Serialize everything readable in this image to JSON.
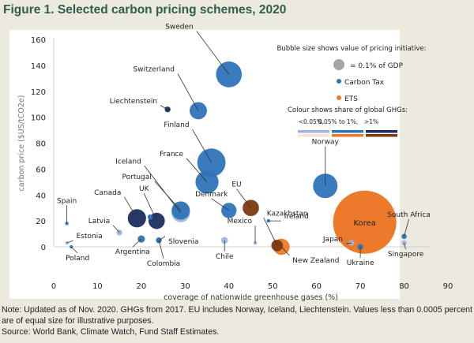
{
  "title": "Figure 1. Selected carbon pricing schemes, 2020",
  "notes": {
    "line1": "Note: Updated as of Nov. 2020. GHGs from 2017. EU includes Norway, Iceland, Liechtenstein. Values less than 0.0005 percent of GDP",
    "line2": "are of equal size for illustrative purposes.",
    "source": "Source: World Bank, Climate Watch, Fund Staff Estimates."
  },
  "colors": {
    "tax_low": "#9fb4e0",
    "tax_mid": "#2e74b8",
    "tax_high": "#1c2d5e",
    "ets_low": "#fbe4d4",
    "ets_mid": "#ec7a2a",
    "ets_high": "#7b3a10",
    "reference_gray": "#a6a6a6",
    "title_green": "#2f5e4a"
  },
  "chart_data": {
    "type": "scatter",
    "subtype": "bubble",
    "title": "Figure 1. Selected carbon pricing schemes, 2020",
    "xlabel": "coverage of nationwide greenhouse gases (%)",
    "ylabel": "carbon price ($US/tCO2e)",
    "xlim": [
      0,
      90
    ],
    "ylim": [
      0,
      160
    ],
    "xticks": [
      0,
      10,
      20,
      30,
      40,
      50,
      60,
      70,
      80,
      90
    ],
    "yticks": [
      0,
      20,
      40,
      60,
      80,
      100,
      120,
      140,
      160
    ],
    "grid": false,
    "legend": {
      "placement": "top-right",
      "size_title": "Bubble size shows value of pricing initiative:",
      "size_reference_label": "= 0.1% of GDP",
      "size_reference_gdp_pct": 0.1,
      "types": [
        {
          "name": "Carbon Tax",
          "color": "#2e74b8"
        },
        {
          "name": "ETS",
          "color": "#ec7a2a"
        }
      ],
      "colour_title": "Colour shows share of global GHGs:",
      "share_labels": [
        "<0.05%,",
        "0.05% to 1%,",
        ">1%"
      ]
    },
    "points": [
      {
        "label": "Sweden",
        "x": 40,
        "y": 133,
        "gdp_pct": 0.1,
        "type": "tax",
        "share": "mid"
      },
      {
        "label": "Switzerland",
        "x": 33,
        "y": 105,
        "gdp_pct": 0.045,
        "type": "tax",
        "share": "mid"
      },
      {
        "label": "Liechtenstein",
        "x": 26,
        "y": 106,
        "gdp_pct": 0.005,
        "type": "tax",
        "share": "high"
      },
      {
        "label": "Finland",
        "x": 36,
        "y": 65,
        "gdp_pct": 0.12,
        "type": "tax",
        "share": "mid"
      },
      {
        "label": "France",
        "x": 35,
        "y": 50,
        "gdp_pct": 0.08,
        "type": "tax",
        "share": "mid"
      },
      {
        "label": "Iceland",
        "x": 29,
        "y": 26,
        "gdp_pct": 0.05,
        "type": "tax",
        "share": "low"
      },
      {
        "label": "Portugal",
        "x": 29,
        "y": 28,
        "gdp_pct": 0.05,
        "type": "tax",
        "share": "mid"
      },
      {
        "label": "Denmark",
        "x": 40,
        "y": 28,
        "gdp_pct": 0.035,
        "type": "tax",
        "share": "mid"
      },
      {
        "label": "EU",
        "x": 45,
        "y": 30,
        "gdp_pct": 0.04,
        "type": "ets",
        "share": "high"
      },
      {
        "label": "Norway",
        "x": 62,
        "y": 47,
        "gdp_pct": 0.09,
        "type": "tax",
        "share": "mid"
      },
      {
        "label": "Ireland",
        "x": 49,
        "y": 20,
        "gdp_pct": 0.0003,
        "type": "tax",
        "share": "mid"
      },
      {
        "label": "Canada",
        "x": 19,
        "y": 22,
        "gdp_pct": 0.05,
        "type": "tax",
        "share": "high"
      },
      {
        "label": "UK",
        "x": 23.5,
        "y": 20,
        "gdp_pct": 0.04,
        "type": "tax",
        "share": "high"
      },
      {
        "label": "UK",
        "x": 22,
        "y": 23,
        "gdp_pct": 0.004,
        "type": "tax",
        "share": "mid"
      },
      {
        "label": "Latvia",
        "x": 15,
        "y": 11,
        "gdp_pct": 0.005,
        "type": "tax",
        "share": "low"
      },
      {
        "label": "Spain",
        "x": 3,
        "y": 18,
        "gdp_pct": 0.0003,
        "type": "tax",
        "share": "mid"
      },
      {
        "label": "Estonia",
        "x": 3,
        "y": 3,
        "gdp_pct": 0.0003,
        "type": "tax",
        "share": "low"
      },
      {
        "label": "Poland",
        "x": 4,
        "y": 0,
        "gdp_pct": 0.0003,
        "type": "tax",
        "share": "mid"
      },
      {
        "label": "Argentina",
        "x": 20,
        "y": 6,
        "gdp_pct": 0.008,
        "type": "tax",
        "share": "mid"
      },
      {
        "label": "Slovenia",
        "x": 24,
        "y": 5,
        "gdp_pct": 0.005,
        "type": "tax",
        "share": "mid"
      },
      {
        "label": "Colombia",
        "x": 24,
        "y": 5,
        "gdp_pct": 0.005,
        "type": "tax",
        "share": "mid"
      },
      {
        "label": "Mexico",
        "x": 46,
        "y": 3,
        "gdp_pct": 0.002,
        "type": "tax",
        "share": "low"
      },
      {
        "label": "Chile",
        "x": 39,
        "y": 5,
        "gdp_pct": 0.007,
        "type": "tax",
        "share": "low"
      },
      {
        "label": "Kazakhstan",
        "x": 51,
        "y": 1,
        "gdp_pct": 0.02,
        "type": "ets",
        "share": "high"
      },
      {
        "label": "New Zealand",
        "x": 52,
        "y": 0,
        "gdp_pct": 0.04,
        "type": "ets",
        "share": "mid"
      },
      {
        "label": "Korea",
        "x": 71,
        "y": 19,
        "gdp_pct": 0.6,
        "type": "ets",
        "share": "mid"
      },
      {
        "label": "Japan",
        "x": 68,
        "y": 3,
        "gdp_pct": 0.005,
        "type": "tax",
        "share": "low"
      },
      {
        "label": "Ukraine",
        "x": 70,
        "y": 0,
        "gdp_pct": 0.005,
        "type": "tax",
        "share": "mid"
      },
      {
        "label": "South Africa",
        "x": 80,
        "y": 8,
        "gdp_pct": 0.004,
        "type": "tax",
        "share": "mid"
      },
      {
        "label": "Singapore",
        "x": 80,
        "y": 3,
        "gdp_pct": 0.004,
        "type": "tax",
        "share": "low"
      }
    ],
    "labels": [
      {
        "text": "Sweden",
        "for": "Sweden"
      },
      {
        "text": "Switzerland",
        "for": "Switzerland"
      },
      {
        "text": "Liechtenstein",
        "for": "Liechtenstein"
      },
      {
        "text": "Finland",
        "for": "Finland"
      },
      {
        "text": "France",
        "for": "France"
      },
      {
        "text": "Iceland",
        "for": "Iceland"
      },
      {
        "text": "Portugal",
        "for": "Portugal"
      },
      {
        "text": "Denmark",
        "for": "Denmark"
      },
      {
        "text": "EU",
        "for": "EU"
      },
      {
        "text": "Norway",
        "for": "Norway"
      },
      {
        "text": "Ireland",
        "for": "Ireland"
      },
      {
        "text": "Canada",
        "for": "Canada"
      },
      {
        "text": "UK",
        "for": "UK"
      },
      {
        "text": "Latvia",
        "for": "Latvia"
      },
      {
        "text": "Spain",
        "for": "Spain"
      },
      {
        "text": "Estonia",
        "for": "Estonia"
      },
      {
        "text": "Poland",
        "for": "Poland"
      },
      {
        "text": "Argentina",
        "for": "Argentina"
      },
      {
        "text": "Slovenia",
        "for": "Slovenia"
      },
      {
        "text": "Colombia",
        "for": "Colombia"
      },
      {
        "text": "Mexico",
        "for": "Mexico"
      },
      {
        "text": "Chile",
        "for": "Chile"
      },
      {
        "text": "Kazakhstan",
        "for": "Kazakhstan"
      },
      {
        "text": "New Zealand",
        "for": "New Zealand"
      },
      {
        "text": "Korea",
        "for": "Korea"
      },
      {
        "text": "Japan",
        "for": "Japan"
      },
      {
        "text": "Ukraine",
        "for": "Ukraine"
      },
      {
        "text": "South Africa",
        "for": "South Africa"
      },
      {
        "text": "Singapore",
        "for": "Singapore"
      }
    ]
  }
}
